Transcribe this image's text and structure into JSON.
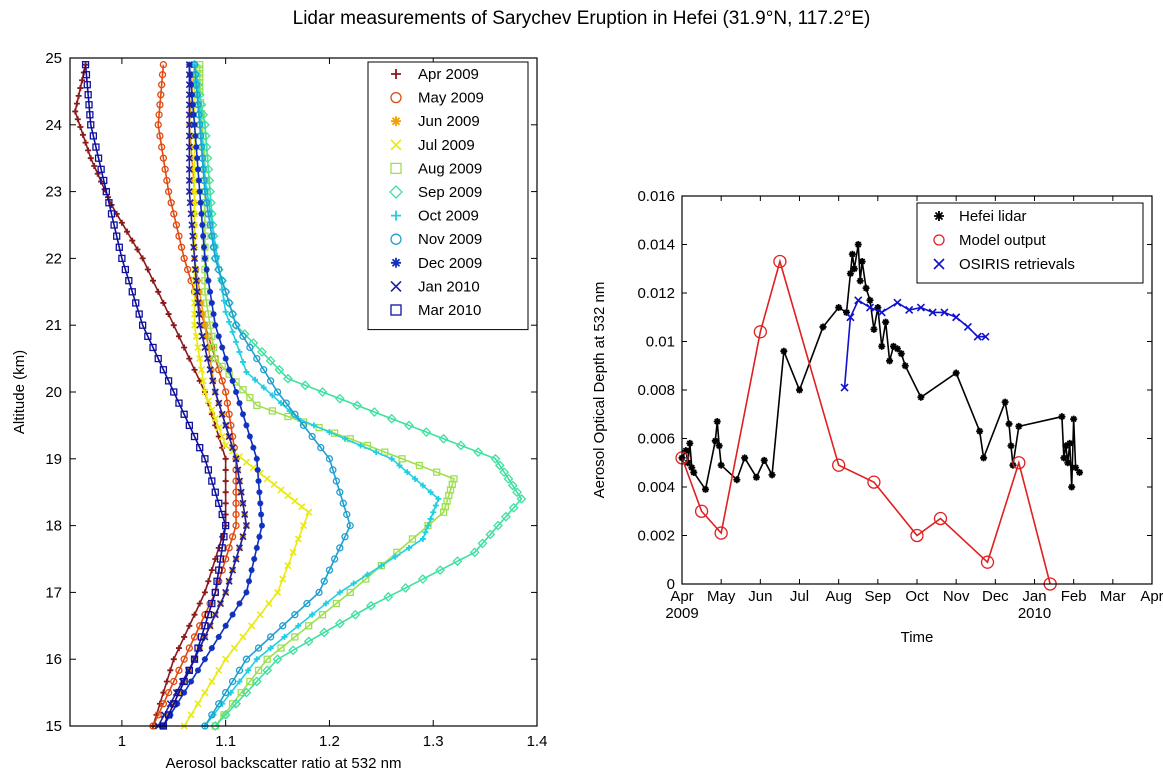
{
  "figure": {
    "title": "Lidar measurements of Sarychev Eruption in Hefei (31.9°N, 117.2°E)"
  },
  "chart_data": [
    {
      "type": "line",
      "xlabel": "Aerosol backscatter ratio at 532 nm",
      "ylabel": "Altitude (km)",
      "xlim": [
        0.95,
        1.4
      ],
      "ylim": [
        15,
        25
      ],
      "xticks": [
        "1",
        "1.1",
        "1.2",
        "1.3",
        "1.4"
      ],
      "yticks": [
        "15",
        "16",
        "17",
        "18",
        "19",
        "20",
        "21",
        "22",
        "23",
        "24",
        "25"
      ],
      "legend": "top-right",
      "series": [
        {
          "name": "Apr 2009",
          "color": "#8b1a1a",
          "marker": "plus",
          "points": [
            [
              1.03,
              15
            ],
            [
              1.05,
              16
            ],
            [
              1.08,
              17
            ],
            [
              1.1,
              18
            ],
            [
              1.1,
              19
            ],
            [
              1.08,
              20
            ],
            [
              1.05,
              21
            ],
            [
              1.02,
              22
            ],
            [
              0.99,
              22.8
            ],
            [
              0.97,
              23.5
            ],
            [
              0.955,
              24.2
            ],
            [
              0.965,
              24.9
            ]
          ]
        },
        {
          "name": "May 2009",
          "color": "#e04a10",
          "marker": "circle",
          "points": [
            [
              1.03,
              15
            ],
            [
              1.06,
              16
            ],
            [
              1.09,
              17
            ],
            [
              1.11,
              18
            ],
            [
              1.11,
              19
            ],
            [
              1.1,
              20
            ],
            [
              1.08,
              21
            ],
            [
              1.06,
              22
            ],
            [
              1.045,
              23
            ],
            [
              1.035,
              24
            ],
            [
              1.04,
              24.9
            ]
          ]
        },
        {
          "name": "Jun 2009",
          "color": "#f0a000",
          "marker": "star",
          "points": [
            [
              1.04,
              15
            ],
            [
              1.07,
              16
            ],
            [
              1.1,
              17
            ],
            [
              1.12,
              18
            ],
            [
              1.11,
              19
            ],
            [
              1.09,
              20
            ],
            [
              1.08,
              21
            ],
            [
              1.07,
              22
            ],
            [
              1.07,
              23
            ],
            [
              1.065,
              24
            ],
            [
              1.07,
              24.9
            ]
          ]
        },
        {
          "name": "Jul 2009",
          "color": "#eaea10",
          "marker": "x",
          "points": [
            [
              1.06,
              15
            ],
            [
              1.1,
              16
            ],
            [
              1.15,
              17
            ],
            [
              1.18,
              18.2
            ],
            [
              1.14,
              18.7
            ],
            [
              1.1,
              19.2
            ],
            [
              1.08,
              20
            ],
            [
              1.07,
              21
            ],
            [
              1.07,
              22
            ],
            [
              1.07,
              23
            ],
            [
              1.07,
              24
            ],
            [
              1.07,
              24.9
            ]
          ]
        },
        {
          "name": "Aug 2009",
          "color": "#9ee050",
          "marker": "square",
          "points": [
            [
              1.09,
              15
            ],
            [
              1.14,
              16
            ],
            [
              1.22,
              17
            ],
            [
              1.31,
              18.2
            ],
            [
              1.32,
              18.7
            ],
            [
              1.22,
              19.3
            ],
            [
              1.13,
              19.8
            ],
            [
              1.09,
              20.5
            ],
            [
              1.08,
              21.5
            ],
            [
              1.08,
              22.5
            ],
            [
              1.08,
              23.5
            ],
            [
              1.075,
              24.5
            ],
            [
              1.075,
              24.9
            ]
          ]
        },
        {
          "name": "Sep 2009",
          "color": "#40e0a0",
          "marker": "diamond",
          "points": [
            [
              1.09,
              15
            ],
            [
              1.15,
              16
            ],
            [
              1.24,
              16.8
            ],
            [
              1.34,
              17.6
            ],
            [
              1.385,
              18.4
            ],
            [
              1.36,
              19.0
            ],
            [
              1.26,
              19.6
            ],
            [
              1.16,
              20.2
            ],
            [
              1.11,
              21
            ],
            [
              1.09,
              22
            ],
            [
              1.085,
              23
            ],
            [
              1.08,
              24
            ],
            [
              1.07,
              24.9
            ]
          ]
        },
        {
          "name": "Oct 2009",
          "color": "#20d0e0",
          "marker": "plus",
          "points": [
            [
              1.08,
              15
            ],
            [
              1.13,
              16
            ],
            [
              1.21,
              17
            ],
            [
              1.29,
              17.8
            ],
            [
              1.305,
              18.4
            ],
            [
              1.26,
              19.0
            ],
            [
              1.17,
              19.6
            ],
            [
              1.12,
              20.3
            ],
            [
              1.1,
              21.2
            ],
            [
              1.09,
              22.2
            ],
            [
              1.08,
              23.2
            ],
            [
              1.075,
              24.2
            ],
            [
              1.07,
              24.9
            ]
          ]
        },
        {
          "name": "Nov 2009",
          "color": "#20a0d0",
          "marker": "circle",
          "points": [
            [
              1.08,
              15
            ],
            [
              1.12,
              16
            ],
            [
              1.19,
              17
            ],
            [
              1.22,
              18
            ],
            [
              1.2,
              19
            ],
            [
              1.15,
              20
            ],
            [
              1.11,
              21
            ],
            [
              1.09,
              22
            ],
            [
              1.08,
              23
            ],
            [
              1.075,
              24
            ],
            [
              1.07,
              24.9
            ]
          ]
        },
        {
          "name": "Dec 2009",
          "color": "#1030c0",
          "marker": "star",
          "points": [
            [
              1.04,
              15
            ],
            [
              1.08,
              16
            ],
            [
              1.12,
              17
            ],
            [
              1.135,
              18
            ],
            [
              1.13,
              19
            ],
            [
              1.11,
              20
            ],
            [
              1.09,
              21
            ],
            [
              1.08,
              22
            ],
            [
              1.075,
              23
            ],
            [
              1.07,
              24
            ],
            [
              1.065,
              24.9
            ]
          ]
        },
        {
          "name": "Jan 2010",
          "color": "#2020a0",
          "marker": "x",
          "points": [
            [
              1.035,
              15
            ],
            [
              1.07,
              16
            ],
            [
              1.1,
              17
            ],
            [
              1.12,
              18
            ],
            [
              1.11,
              19
            ],
            [
              1.09,
              20
            ],
            [
              1.075,
              21
            ],
            [
              1.07,
              22
            ],
            [
              1.065,
              23
            ],
            [
              1.065,
              24
            ],
            [
              1.065,
              24.9
            ]
          ]
        },
        {
          "name": "Mar 2010",
          "color": "#1010a0",
          "marker": "square",
          "points": [
            [
              1.04,
              15
            ],
            [
              1.07,
              16
            ],
            [
              1.09,
              17
            ],
            [
              1.1,
              18
            ],
            [
              1.08,
              19
            ],
            [
              1.05,
              20
            ],
            [
              1.02,
              21
            ],
            [
              1.0,
              22
            ],
            [
              0.985,
              23
            ],
            [
              0.97,
              24
            ],
            [
              0.965,
              24.9
            ]
          ]
        }
      ]
    },
    {
      "type": "line",
      "xlabel": "Time",
      "ylabel": "Aerosol Optical Depth at 532 nm",
      "xlim": [
        0,
        12
      ],
      "ylim": [
        0,
        0.016
      ],
      "xtick_labels": [
        "Apr",
        "May",
        "Jun",
        "Jul",
        "Aug",
        "Sep",
        "Oct",
        "Nov",
        "Dec",
        "Jan",
        "Feb",
        "Mar",
        "Apr"
      ],
      "xtick_years": [
        {
          "at": 0,
          "label": "2009"
        },
        {
          "at": 9,
          "label": "2010"
        }
      ],
      "yticks": [
        "0",
        "0.002",
        "0.004",
        "0.006",
        "0.008",
        "0.01",
        "0.012",
        "0.014",
        "0.016"
      ],
      "legend": "top-right",
      "series": [
        {
          "name": "Hefei lidar",
          "color": "#000000",
          "marker": "star",
          "points": [
            [
              0,
              0.0052
            ],
            [
              0.1,
              0.0055
            ],
            [
              0.15,
              0.005
            ],
            [
              0.2,
              0.0058
            ],
            [
              0.25,
              0.0048
            ],
            [
              0.3,
              0.0046
            ],
            [
              0.6,
              0.0039
            ],
            [
              0.85,
              0.0059
            ],
            [
              0.9,
              0.0067
            ],
            [
              0.95,
              0.0057
            ],
            [
              1.0,
              0.0049
            ],
            [
              1.4,
              0.0043
            ],
            [
              1.6,
              0.0052
            ],
            [
              1.9,
              0.0044
            ],
            [
              2.1,
              0.0051
            ],
            [
              2.3,
              0.0045
            ],
            [
              2.6,
              0.0096
            ],
            [
              3.0,
              0.008
            ],
            [
              3.6,
              0.0106
            ],
            [
              4.0,
              0.0114
            ],
            [
              4.2,
              0.0112
            ],
            [
              4.3,
              0.0128
            ],
            [
              4.35,
              0.0136
            ],
            [
              4.4,
              0.013
            ],
            [
              4.5,
              0.014
            ],
            [
              4.55,
              0.0125
            ],
            [
              4.6,
              0.0133
            ],
            [
              4.7,
              0.0122
            ],
            [
              4.8,
              0.0117
            ],
            [
              4.9,
              0.0105
            ],
            [
              5.0,
              0.0114
            ],
            [
              5.1,
              0.0098
            ],
            [
              5.2,
              0.0108
            ],
            [
              5.3,
              0.0092
            ],
            [
              5.4,
              0.0098
            ],
            [
              5.5,
              0.0097
            ],
            [
              5.6,
              0.0095
            ],
            [
              5.7,
              0.009
            ],
            [
              6.1,
              0.0077
            ],
            [
              7.0,
              0.0087
            ],
            [
              7.6,
              0.0063
            ],
            [
              7.7,
              0.0052
            ],
            [
              8.25,
              0.0075
            ],
            [
              8.35,
              0.0066
            ],
            [
              8.4,
              0.0057
            ],
            [
              8.45,
              0.0049
            ],
            [
              8.6,
              0.0065
            ],
            [
              9.7,
              0.0069
            ],
            [
              9.75,
              0.0052
            ],
            [
              9.8,
              0.0057
            ],
            [
              9.85,
              0.005
            ],
            [
              9.9,
              0.0058
            ],
            [
              9.95,
              0.004
            ],
            [
              10.0,
              0.0068
            ],
            [
              10.05,
              0.0048
            ],
            [
              10.15,
              0.0046
            ]
          ]
        },
        {
          "name": "Model output",
          "color": "#e02020",
          "marker": "circle",
          "points": [
            [
              0,
              0.0052
            ],
            [
              0.5,
              0.003
            ],
            [
              1.0,
              0.0021
            ],
            [
              2.0,
              0.0104
            ],
            [
              2.5,
              0.0133
            ],
            [
              4.0,
              0.0049
            ],
            [
              4.9,
              0.0042
            ],
            [
              6.0,
              0.002
            ],
            [
              6.6,
              0.0027
            ],
            [
              7.8,
              0.0009
            ],
            [
              8.6,
              0.005
            ],
            [
              9.4,
              0.0
            ]
          ]
        },
        {
          "name": "OSIRIS retrievals",
          "color": "#1010d0",
          "marker": "x",
          "points": [
            [
              4.15,
              0.0081
            ],
            [
              4.3,
              0.011
            ],
            [
              4.5,
              0.0117
            ],
            [
              4.8,
              0.0114
            ],
            [
              5.1,
              0.0112
            ],
            [
              5.5,
              0.0116
            ],
            [
              5.8,
              0.0113
            ],
            [
              6.1,
              0.0114
            ],
            [
              6.4,
              0.0112
            ],
            [
              6.7,
              0.0112
            ],
            [
              7.0,
              0.011
            ],
            [
              7.3,
              0.0106
            ],
            [
              7.55,
              0.0102
            ],
            [
              7.75,
              0.0102
            ]
          ]
        }
      ]
    }
  ]
}
